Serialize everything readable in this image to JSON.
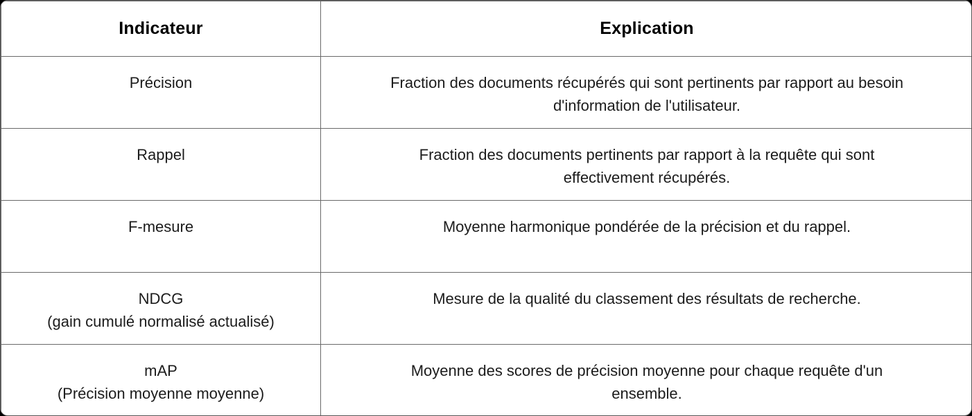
{
  "table": {
    "headers": [
      {
        "label": "Indicateur"
      },
      {
        "label": "Explication"
      }
    ],
    "rows": [
      {
        "indicator": "Précision",
        "explanation": "Fraction des documents récupérés qui sont pertinents par rapport au besoin\nd'information de l'utilisateur."
      },
      {
        "indicator": "Rappel",
        "explanation": "Fraction des documents pertinents par rapport à la requête qui sont\neffectivement récupérés."
      },
      {
        "indicator": "F-mesure",
        "explanation": "Moyenne harmonique pondérée de la précision et du rappel."
      },
      {
        "indicator": "NDCG\n(gain cumulé normalisé actualisé)",
        "explanation": "Mesure de la qualité du classement des résultats de recherche."
      },
      {
        "indicator": "mAP\n(Précision moyenne moyenne)",
        "explanation": "Moyenne des scores de précision moyenne pour chaque requête d'un\nensemble."
      }
    ],
    "colors": {
      "grid_line": "#696969",
      "outer_border": "#565656",
      "background": "#ffffff",
      "text": "#1c1c1c",
      "page_backdrop": "#000000"
    }
  }
}
